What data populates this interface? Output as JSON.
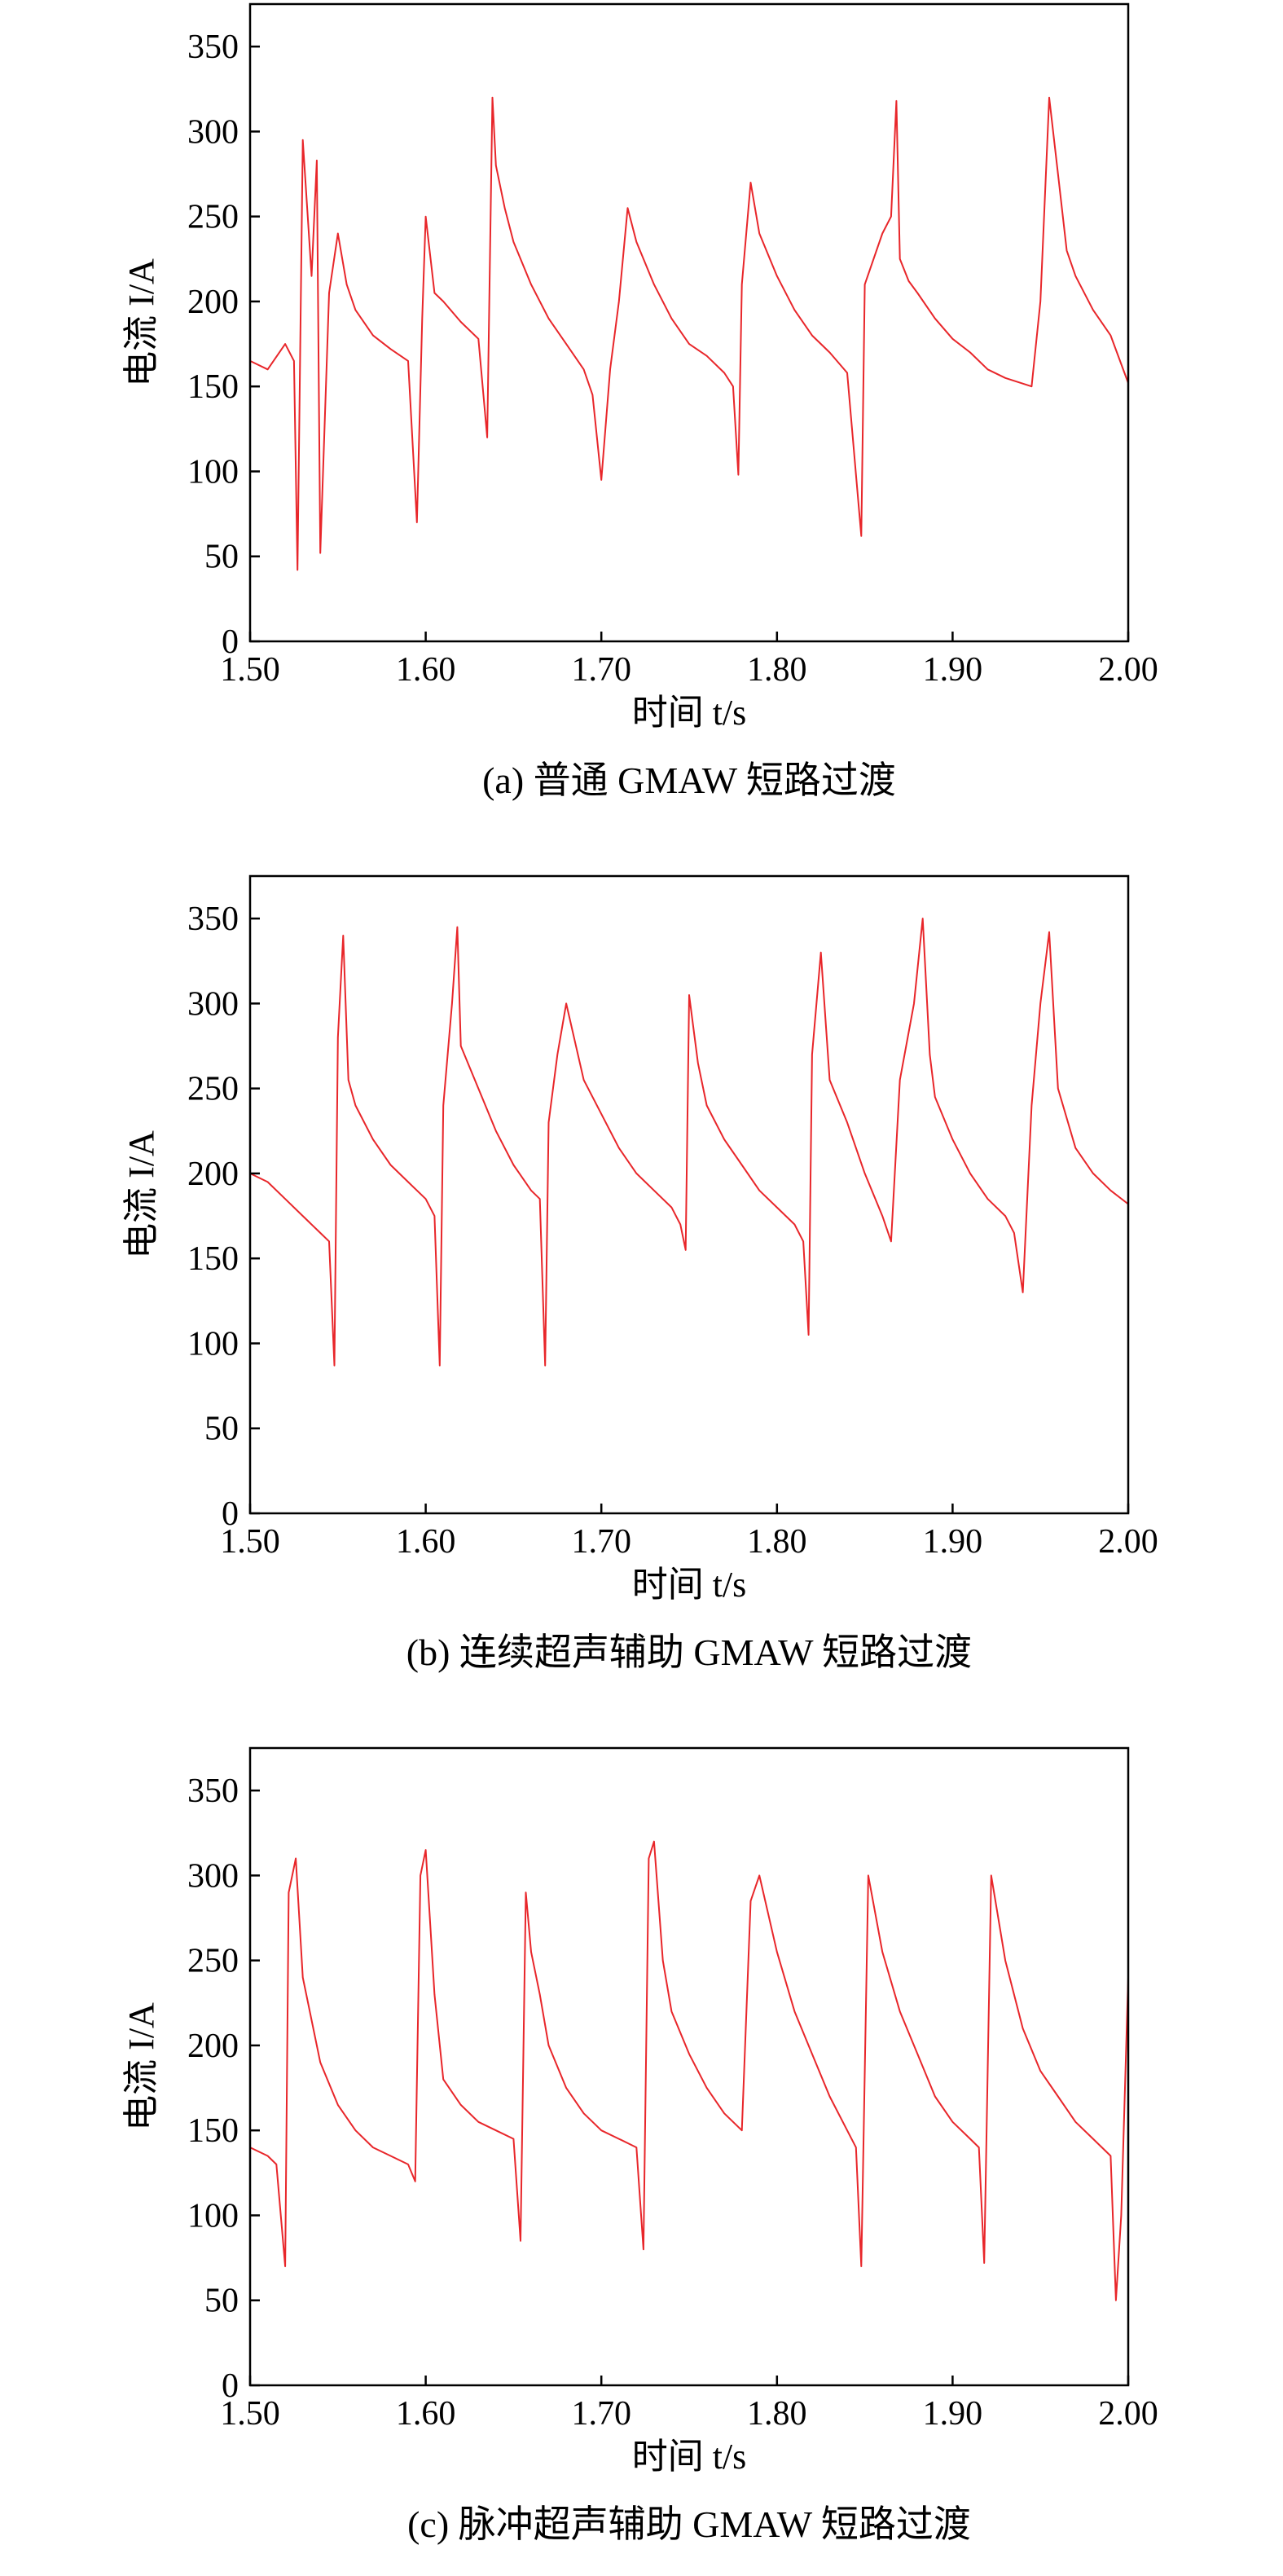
{
  "colors": {
    "trace": "#e8262a",
    "axis": "#000000",
    "background": "#ffffff"
  },
  "chart_data": [
    {
      "type": "line",
      "caption": "(a) 普通 GMAW 短路过渡",
      "xlabel": "时间 t/s",
      "ylabel": "电流 I/A",
      "xlim": [
        1.5,
        2.0
      ],
      "ylim": [
        0,
        375
      ],
      "xticks": [
        "1.50",
        "1.60",
        "1.70",
        "1.80",
        "1.90",
        "2.00"
      ],
      "yticks": [
        "0",
        "50",
        "100",
        "150",
        "200",
        "250",
        "300",
        "350"
      ],
      "grid": false,
      "series": [
        {
          "color": "#e8262a",
          "x": [
            1.5,
            1.51,
            1.52,
            1.525,
            1.527,
            1.53,
            1.535,
            1.538,
            1.54,
            1.545,
            1.55,
            1.555,
            1.56,
            1.57,
            1.58,
            1.59,
            1.595,
            1.598,
            1.6,
            1.605,
            1.61,
            1.62,
            1.63,
            1.635,
            1.638,
            1.64,
            1.645,
            1.65,
            1.66,
            1.67,
            1.68,
            1.69,
            1.695,
            1.7,
            1.705,
            1.71,
            1.715,
            1.72,
            1.73,
            1.74,
            1.75,
            1.76,
            1.77,
            1.775,
            1.778,
            1.78,
            1.785,
            1.79,
            1.8,
            1.81,
            1.82,
            1.83,
            1.84,
            1.848,
            1.85,
            1.86,
            1.865,
            1.868,
            1.87,
            1.875,
            1.88,
            1.89,
            1.9,
            1.91,
            1.92,
            1.93,
            1.945,
            1.95,
            1.955,
            1.96,
            1.965,
            1.97,
            1.98,
            1.99,
            2.0
          ],
          "y": [
            165,
            160,
            175,
            165,
            42,
            295,
            215,
            283,
            52,
            205,
            240,
            210,
            195,
            180,
            172,
            165,
            70,
            190,
            250,
            205,
            200,
            188,
            178,
            120,
            320,
            280,
            255,
            235,
            210,
            190,
            175,
            160,
            145,
            95,
            160,
            200,
            255,
            235,
            210,
            190,
            175,
            168,
            158,
            150,
            98,
            210,
            270,
            240,
            215,
            195,
            180,
            170,
            158,
            62,
            210,
            240,
            250,
            318,
            225,
            212,
            205,
            190,
            178,
            170,
            160,
            155,
            150,
            200,
            320,
            275,
            230,
            215,
            195,
            180,
            152
          ]
        }
      ]
    },
    {
      "type": "line",
      "caption": "(b) 连续超声辅助 GMAW 短路过渡",
      "xlabel": "时间 t/s",
      "ylabel": "电流 I/A",
      "xlim": [
        1.5,
        2.0
      ],
      "ylim": [
        0,
        375
      ],
      "xticks": [
        "1.50",
        "1.60",
        "1.70",
        "1.80",
        "1.90",
        "2.00"
      ],
      "yticks": [
        "0",
        "50",
        "100",
        "150",
        "200",
        "250",
        "300",
        "350"
      ],
      "grid": false,
      "series": [
        {
          "color": "#e8262a",
          "x": [
            1.5,
            1.51,
            1.52,
            1.53,
            1.54,
            1.545,
            1.548,
            1.55,
            1.553,
            1.556,
            1.56,
            1.57,
            1.58,
            1.59,
            1.6,
            1.605,
            1.608,
            1.61,
            1.615,
            1.618,
            1.62,
            1.63,
            1.64,
            1.65,
            1.66,
            1.665,
            1.668,
            1.67,
            1.675,
            1.68,
            1.69,
            1.7,
            1.71,
            1.72,
            1.73,
            1.74,
            1.745,
            1.748,
            1.75,
            1.755,
            1.76,
            1.77,
            1.78,
            1.79,
            1.8,
            1.81,
            1.815,
            1.818,
            1.82,
            1.825,
            1.83,
            1.84,
            1.85,
            1.86,
            1.865,
            1.87,
            1.878,
            1.883,
            1.887,
            1.89,
            1.9,
            1.91,
            1.92,
            1.93,
            1.935,
            1.94,
            1.945,
            1.95,
            1.955,
            1.96,
            1.97,
            1.98,
            1.99,
            2.0
          ],
          "y": [
            200,
            195,
            185,
            175,
            165,
            160,
            87,
            280,
            340,
            255,
            240,
            220,
            205,
            195,
            185,
            175,
            87,
            240,
            300,
            345,
            275,
            250,
            225,
            205,
            190,
            185,
            87,
            230,
            270,
            300,
            255,
            235,
            215,
            200,
            190,
            180,
            170,
            155,
            305,
            265,
            240,
            220,
            205,
            190,
            180,
            170,
            160,
            105,
            270,
            330,
            255,
            230,
            200,
            175,
            160,
            255,
            300,
            350,
            270,
            245,
            220,
            200,
            185,
            175,
            165,
            130,
            240,
            300,
            342,
            250,
            215,
            200,
            190,
            182
          ]
        }
      ]
    },
    {
      "type": "line",
      "caption": "(c) 脉冲超声辅助 GMAW 短路过渡",
      "xlabel": "时间 t/s",
      "ylabel": "电流 I/A",
      "xlim": [
        1.5,
        2.0
      ],
      "ylim": [
        0,
        375
      ],
      "xticks": [
        "1.50",
        "1.60",
        "1.70",
        "1.80",
        "1.90",
        "2.00"
      ],
      "yticks": [
        "0",
        "50",
        "100",
        "150",
        "200",
        "250",
        "300",
        "350"
      ],
      "grid": false,
      "series": [
        {
          "color": "#e8262a",
          "x": [
            1.5,
            1.51,
            1.515,
            1.52,
            1.522,
            1.526,
            1.53,
            1.54,
            1.55,
            1.56,
            1.57,
            1.58,
            1.59,
            1.594,
            1.597,
            1.6,
            1.605,
            1.61,
            1.62,
            1.63,
            1.64,
            1.65,
            1.654,
            1.657,
            1.66,
            1.665,
            1.67,
            1.68,
            1.69,
            1.7,
            1.71,
            1.72,
            1.724,
            1.727,
            1.73,
            1.735,
            1.74,
            1.75,
            1.76,
            1.77,
            1.78,
            1.785,
            1.79,
            1.8,
            1.81,
            1.82,
            1.83,
            1.84,
            1.845,
            1.848,
            1.852,
            1.86,
            1.87,
            1.88,
            1.89,
            1.9,
            1.91,
            1.915,
            1.918,
            1.922,
            1.93,
            1.94,
            1.95,
            1.96,
            1.97,
            1.98,
            1.99,
            1.993,
            1.996,
            2.0
          ],
          "y": [
            140,
            135,
            130,
            70,
            290,
            310,
            240,
            190,
            165,
            150,
            140,
            135,
            130,
            120,
            300,
            315,
            230,
            180,
            165,
            155,
            150,
            145,
            85,
            290,
            255,
            230,
            200,
            175,
            160,
            150,
            145,
            140,
            80,
            310,
            320,
            250,
            220,
            195,
            175,
            160,
            150,
            285,
            300,
            255,
            220,
            195,
            170,
            150,
            140,
            70,
            300,
            255,
            220,
            195,
            170,
            155,
            145,
            140,
            72,
            300,
            250,
            210,
            185,
            170,
            155,
            145,
            135,
            50,
            100,
            240
          ]
        }
      ]
    }
  ]
}
